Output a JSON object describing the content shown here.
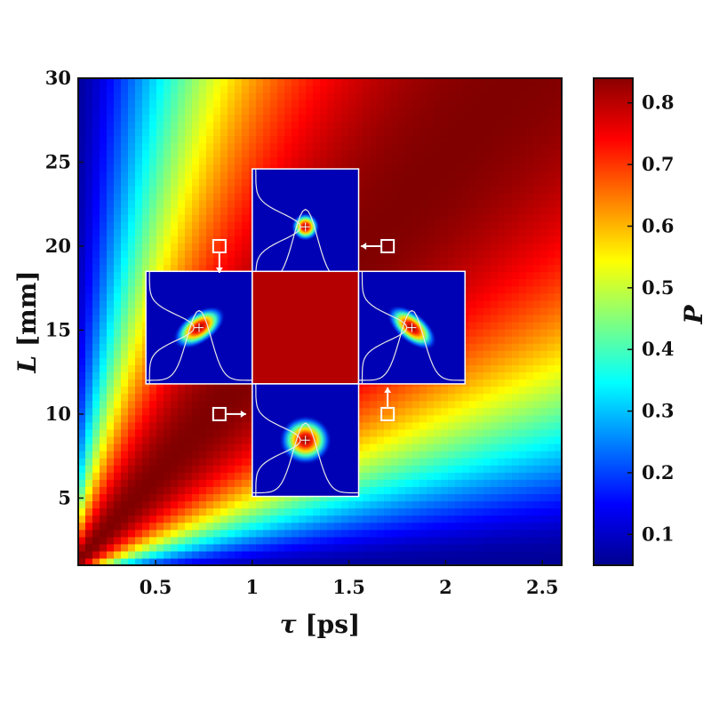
{
  "chart_data": {
    "type": "heatmap",
    "xlabel_symbol": "τ",
    "xlabel_unit": "[ps]",
    "ylabel_symbol": "L",
    "ylabel_unit": "[mm]",
    "colorbar_label": "P",
    "xlim": [
      0.1,
      2.6
    ],
    "ylim": [
      1,
      30
    ],
    "x_ticks": [
      0.5,
      1,
      1.5,
      2,
      2.5
    ],
    "x_tick_labels": [
      "0.5",
      "1",
      "1.5",
      "2",
      "2.5"
    ],
    "y_ticks": [
      5,
      10,
      15,
      20,
      25,
      30
    ],
    "y_tick_labels": [
      "5",
      "10",
      "15",
      "20",
      "25",
      "30"
    ],
    "colorbar_range": [
      0.05,
      0.84
    ],
    "colorbar_ticks": [
      0.1,
      0.2,
      0.3,
      0.4,
      0.5,
      0.6,
      0.7,
      0.8
    ],
    "colorbar_tick_labels": [
      "0.1",
      "0.2",
      "0.3",
      "0.4",
      "0.5",
      "0.6",
      "0.7",
      "0.8"
    ],
    "colormap": "jet",
    "grid": false,
    "insets": [
      {
        "name": "top",
        "tau_range": [
          1,
          1.55
        ],
        "L_range": [
          17.7,
          24.6
        ],
        "blob": "circular-small"
      },
      {
        "name": "left",
        "tau_range": [
          0.45,
          1
        ],
        "L_range": [
          11.8,
          18.5
        ],
        "blob": "ellipse-tilted-right"
      },
      {
        "name": "center",
        "tau_range": [
          1,
          1.55
        ],
        "L_range": [
          11.8,
          18.5
        ],
        "blob": "none"
      },
      {
        "name": "right",
        "tau_range": [
          1.55,
          2.1
        ],
        "L_range": [
          11.8,
          18.5
        ],
        "blob": "ellipse-tilted-left"
      },
      {
        "name": "bottom",
        "tau_range": [
          1,
          1.55
        ],
        "L_range": [
          5.1,
          11.8
        ],
        "blob": "circular-large"
      }
    ],
    "markers": [
      {
        "name": "top-left-square",
        "tau": 0.83,
        "L": 20,
        "arrow": "down"
      },
      {
        "name": "top-right-square",
        "tau": 1.7,
        "L": 20,
        "arrow": "left"
      },
      {
        "name": "bottom-left-square",
        "tau": 0.83,
        "L": 10,
        "arrow": "right"
      },
      {
        "name": "bottom-right-square",
        "tau": 1.7,
        "L": 10,
        "arrow": "up"
      }
    ]
  }
}
